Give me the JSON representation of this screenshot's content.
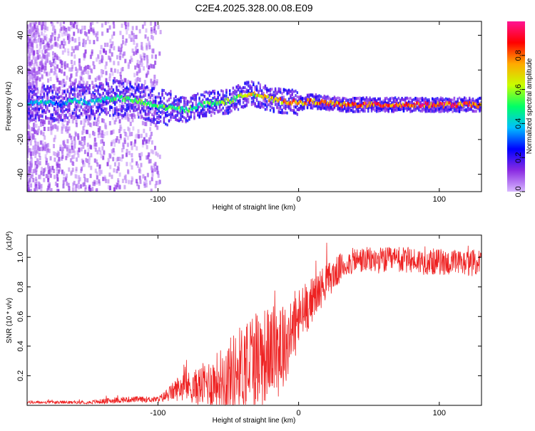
{
  "figure_title": "C2E4.2025.328.00.08.E09",
  "colors": {
    "snr_line": "#ee2222",
    "axis": "#000000",
    "colorbar_stops": [
      "#d8b8ff",
      "#8a2be2",
      "#0000ff",
      "#00bfff",
      "#00ff66",
      "#c8ff00",
      "#ffaa00",
      "#ff0000",
      "#ff1493"
    ]
  },
  "chart_data": [
    {
      "type": "heatmap",
      "title": "",
      "xlabel": "Height of straight line (km)",
      "ylabel": "Frequency (Hz)",
      "xlim": [
        -193,
        130
      ],
      "ylim": [
        -50,
        48
      ],
      "xticks": [
        -100,
        0,
        100
      ],
      "xtick_labels": [
        "-100",
        "0",
        "100"
      ],
      "yticks": [
        -40,
        -20,
        0,
        20,
        40
      ],
      "ytick_labels": [
        "-40",
        "-20",
        "0",
        "20",
        "40"
      ],
      "colorbar": {
        "label": "Normalized spectral amplitude",
        "range": [
          0,
          1
        ],
        "ticks": [
          0,
          0.2,
          0.4,
          0.6,
          0.8
        ],
        "tick_labels": [
          "0.0",
          "0.2",
          "0.4",
          "0.6",
          "0.8"
        ]
      },
      "ridge": {
        "x": [
          -193,
          -180,
          -170,
          -160,
          -150,
          -140,
          -130,
          -120,
          -110,
          -100,
          -90,
          -80,
          -70,
          -60,
          -50,
          -40,
          -35,
          -30,
          -20,
          -10,
          0,
          10,
          20,
          30,
          40,
          60,
          80,
          100,
          130
        ],
        "freq_hz": [
          0,
          2,
          0,
          3,
          1,
          3,
          4,
          3,
          1,
          -1,
          -2,
          -3,
          0,
          1,
          2,
          5,
          7,
          6,
          3,
          2,
          1,
          2,
          1,
          0,
          0,
          0,
          0,
          0,
          0
        ],
        "amplitude": [
          0.35,
          0.45,
          0.3,
          0.5,
          0.4,
          0.45,
          0.55,
          0.55,
          0.55,
          0.55,
          0.55,
          0.55,
          0.5,
          0.6,
          0.6,
          0.65,
          0.7,
          0.7,
          0.75,
          0.8,
          0.85,
          0.8,
          0.85,
          0.85,
          0.9,
          0.9,
          0.9,
          0.9,
          0.9
        ]
      }
    },
    {
      "type": "line",
      "title": "",
      "xlabel": "Height of straight line (km)",
      "ylabel": "SNR (10 * v/v)",
      "multiplier_label": "(x10",
      "multiplier_exp": "4",
      "multiplier_close": ")",
      "xlim": [
        -193,
        130
      ],
      "ylim": [
        0,
        1.15
      ],
      "xticks": [
        -100,
        0,
        100
      ],
      "xtick_labels": [
        "-100",
        "0",
        "100"
      ],
      "yticks": [
        0.2,
        0.4,
        0.6,
        0.8,
        1.0
      ],
      "ytick_labels": [
        "0.2",
        "0.4",
        "0.6",
        "0.8",
        "1.0"
      ],
      "series": [
        {
          "name": "SNR",
          "x": [
            -193,
            -170,
            -150,
            -135,
            -120,
            -110,
            -100,
            -95,
            -90,
            -85,
            -80,
            -75,
            -70,
            -65,
            -60,
            -55,
            -50,
            -45,
            -40,
            -35,
            -30,
            -25,
            -20,
            -15,
            -13,
            -10,
            -5,
            0,
            5,
            10,
            15,
            20,
            25,
            30,
            35,
            40,
            50,
            60,
            70,
            80,
            90,
            100,
            110,
            120,
            130
          ],
          "y": [
            0.02,
            0.02,
            0.02,
            0.03,
            0.04,
            0.04,
            0.04,
            0.06,
            0.09,
            0.12,
            0.13,
            0.12,
            0.13,
            0.15,
            0.16,
            0.18,
            0.2,
            0.23,
            0.26,
            0.3,
            0.33,
            0.33,
            0.37,
            0.38,
            0.45,
            0.4,
            0.5,
            0.58,
            0.65,
            0.72,
            0.78,
            0.84,
            0.88,
            0.93,
            0.96,
            0.98,
            0.98,
            0.98,
            0.98,
            0.98,
            0.97,
            0.97,
            0.96,
            0.96,
            0.97
          ],
          "noise_amplitude": [
            0.01,
            0.01,
            0.01,
            0.02,
            0.02,
            0.02,
            0.02,
            0.04,
            0.06,
            0.09,
            0.1,
            0.11,
            0.14,
            0.16,
            0.18,
            0.22,
            0.25,
            0.28,
            0.3,
            0.35,
            0.35,
            0.34,
            0.3,
            0.3,
            0.5,
            0.26,
            0.25,
            0.22,
            0.18,
            0.15,
            0.14,
            0.12,
            0.11,
            0.1,
            0.09,
            0.09,
            0.09,
            0.09,
            0.09,
            0.09,
            0.09,
            0.09,
            0.09,
            0.09,
            0.09
          ]
        }
      ]
    }
  ]
}
